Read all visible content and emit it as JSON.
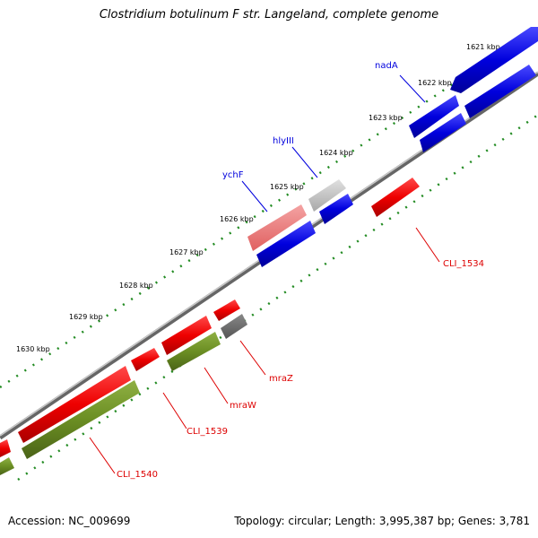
{
  "title": "Clostridium botulinum F str. Langeland, complete genome",
  "footer": {
    "accession": "Accession: NC_009699",
    "stats": "Topology: circular; Length: 3,995,387 bp; Genes: 3,781"
  },
  "ticks": [
    {
      "label": "1621 kbp"
    },
    {
      "label": "1622 kbp"
    },
    {
      "label": "1623 kbp"
    },
    {
      "label": "1624 kbp"
    },
    {
      "label": "1625 kbp"
    },
    {
      "label": "1626 kbp"
    },
    {
      "label": "1627 kbp"
    },
    {
      "label": "1628 kbp"
    },
    {
      "label": "1629 kbp"
    },
    {
      "label": "1630 kbp"
    }
  ],
  "genes": [
    {
      "name": "nadA",
      "color": "#0000dd"
    },
    {
      "name": "hlyIII",
      "color": "#0000dd"
    },
    {
      "name": "ychF",
      "color": "#0000dd"
    },
    {
      "name": "CLI_1534",
      "color": "#dd0000"
    },
    {
      "name": "mraZ",
      "color": "#dd0000"
    },
    {
      "name": "mraW",
      "color": "#dd0000"
    },
    {
      "name": "CLI_1539",
      "color": "#dd0000"
    },
    {
      "name": "CLI_1540",
      "color": "#dd0000"
    }
  ],
  "colors": {
    "forward_gene": "#0000dd",
    "reverse_gene": "#ee0000",
    "rrna_like": "#6b8e23",
    "tick": "#228b22",
    "backbone": "#888888",
    "pseudo_gray": "#aaaaaa"
  }
}
